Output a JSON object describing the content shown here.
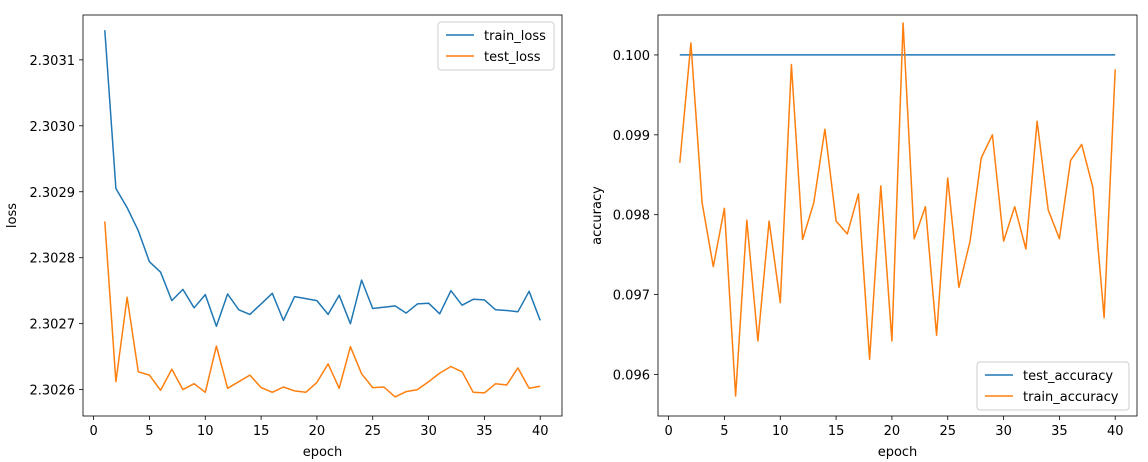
{
  "chart_data": [
    {
      "type": "line",
      "xlabel": "epoch",
      "ylabel": "loss",
      "xlim": [
        -0.95,
        41.95
      ],
      "ylim": [
        2.30256,
        2.303168
      ],
      "xticks": [
        0,
        5,
        10,
        15,
        20,
        25,
        30,
        35,
        40
      ],
      "yticks": [
        2.3026,
        2.3027,
        2.3028,
        2.3029,
        2.303,
        2.3031
      ],
      "ytick_labels": [
        "2.3026",
        "2.3027",
        "2.3028",
        "2.3029",
        "2.3030",
        "2.3031"
      ],
      "legend": "top-right",
      "x": [
        1,
        2,
        3,
        4,
        5,
        6,
        7,
        8,
        9,
        10,
        11,
        12,
        13,
        14,
        15,
        16,
        17,
        18,
        19,
        20,
        21,
        22,
        23,
        24,
        25,
        26,
        27,
        28,
        29,
        30,
        31,
        32,
        33,
        34,
        35,
        36,
        37,
        38,
        39,
        40
      ],
      "series": [
        {
          "name": "train_loss",
          "color": "#1f77b4",
          "values": [
            2.303145,
            2.302905,
            2.302876,
            2.302841,
            2.302794,
            2.302778,
            2.302735,
            2.302752,
            2.302724,
            2.302744,
            2.302696,
            2.302745,
            2.302721,
            2.302714,
            2.30273,
            2.302746,
            2.302705,
            2.302741,
            2.302738,
            2.302735,
            2.302714,
            2.302743,
            2.3027,
            2.302766,
            2.302723,
            2.302725,
            2.302727,
            2.302716,
            2.30273,
            2.302731,
            2.302715,
            2.30275,
            2.302728,
            2.302737,
            2.302736,
            2.302721,
            2.30272,
            2.302718,
            2.302749,
            2.302705
          ]
        },
        {
          "name": "test_loss",
          "color": "#ff7f0e",
          "values": [
            2.302855,
            2.302612,
            2.30274,
            2.302627,
            2.302622,
            2.302599,
            2.302631,
            2.3026,
            2.302609,
            2.302596,
            2.302666,
            2.302602,
            2.302612,
            2.302622,
            2.302603,
            2.302596,
            2.302604,
            2.302598,
            2.302596,
            2.302611,
            2.302639,
            2.302602,
            2.302665,
            2.302624,
            2.302603,
            2.302604,
            2.302589,
            2.302597,
            2.3026,
            2.302612,
            2.302625,
            2.302635,
            2.302627,
            2.302596,
            2.302595,
            2.302609,
            2.302607,
            2.302633,
            2.302602,
            2.302605
          ]
        }
      ]
    },
    {
      "type": "line",
      "xlabel": "epoch",
      "ylabel": "accuracy",
      "xlim": [
        -0.95,
        41.95
      ],
      "ylim": [
        0.09548,
        0.1005
      ],
      "xticks": [
        0,
        5,
        10,
        15,
        20,
        25,
        30,
        35,
        40
      ],
      "yticks": [
        0.096,
        0.097,
        0.098,
        0.099,
        0.1
      ],
      "ytick_labels": [
        "0.096",
        "0.097",
        "0.098",
        "0.099",
        "0.100"
      ],
      "legend": "bottom-right",
      "x": [
        1,
        2,
        3,
        4,
        5,
        6,
        7,
        8,
        9,
        10,
        11,
        12,
        13,
        14,
        15,
        16,
        17,
        18,
        19,
        20,
        21,
        22,
        23,
        24,
        25,
        26,
        27,
        28,
        29,
        30,
        31,
        32,
        33,
        34,
        35,
        36,
        37,
        38,
        39,
        40
      ],
      "series": [
        {
          "name": "test_accuracy",
          "color": "#1f77b4",
          "values": [
            0.1,
            0.1,
            0.1,
            0.1,
            0.1,
            0.1,
            0.1,
            0.1,
            0.1,
            0.1,
            0.1,
            0.1,
            0.1,
            0.1,
            0.1,
            0.1,
            0.1,
            0.1,
            0.1,
            0.1,
            0.1,
            0.1,
            0.1,
            0.1,
            0.1,
            0.1,
            0.1,
            0.1,
            0.1,
            0.1,
            0.1,
            0.1,
            0.1,
            0.1,
            0.1,
            0.1,
            0.1,
            0.1,
            0.1,
            0.1
          ]
        },
        {
          "name": "train_accuracy",
          "color": "#ff7f0e",
          "values": [
            0.09865,
            0.10015,
            0.09815,
            0.09735,
            0.09808,
            0.09573,
            0.09793,
            0.09642,
            0.09792,
            0.0969,
            0.09988,
            0.09769,
            0.09815,
            0.09907,
            0.09792,
            0.09776,
            0.09826,
            0.09619,
            0.09836,
            0.09642,
            0.1004,
            0.0977,
            0.0981,
            0.09649,
            0.09846,
            0.09709,
            0.09767,
            0.09871,
            0.099,
            0.09767,
            0.0981,
            0.09757,
            0.09917,
            0.09806,
            0.0977,
            0.09868,
            0.09888,
            0.09834,
            0.09671,
            0.09982
          ]
        }
      ]
    }
  ]
}
